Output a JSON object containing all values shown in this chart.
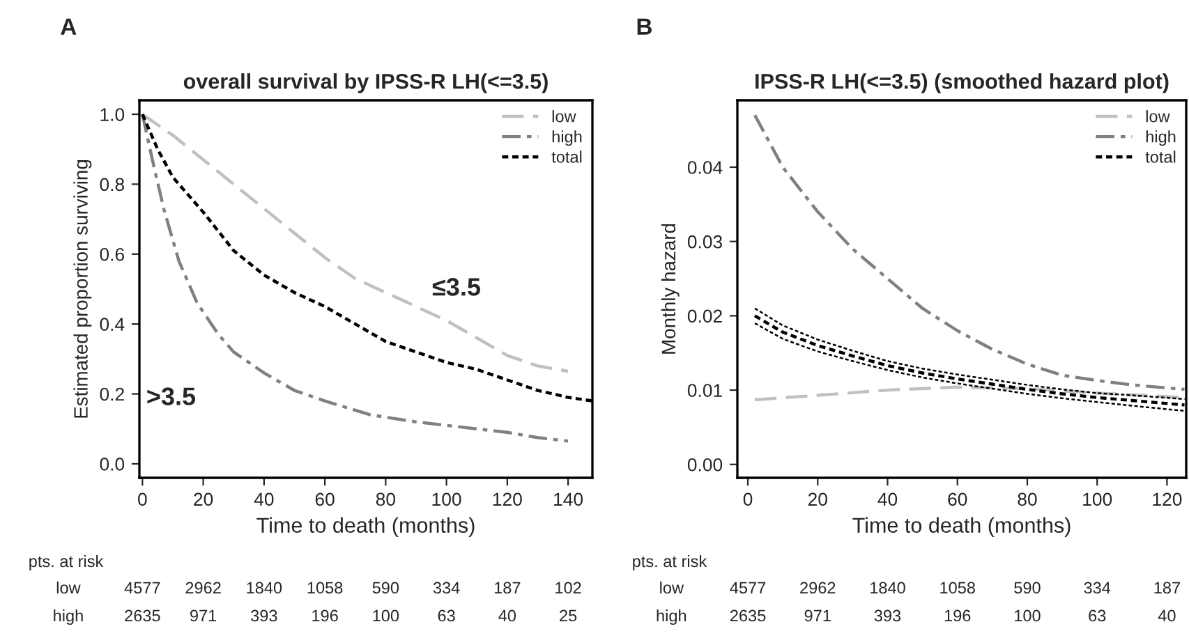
{
  "chart_data": [
    {
      "type": "line",
      "title": "overall survival by IPSS-R LH(<=3.5)",
      "xlabel": "Time to death (months)",
      "ylabel": "Estimated proportion surviving",
      "xlim": [
        -1,
        148
      ],
      "xticks": [
        0,
        20,
        40,
        60,
        80,
        100,
        120,
        140
      ],
      "ylim": [
        -0.04,
        1.04
      ],
      "yticks": [
        {
          "value": 0,
          "label": "0.0"
        },
        {
          "value": 0.2,
          "label": "0.2"
        },
        {
          "value": 0.4,
          "label": "0.4"
        },
        {
          "value": 0.6,
          "label": "0.6"
        },
        {
          "value": 0.8,
          "label": "0.8"
        },
        {
          "value": 1,
          "label": "1.0"
        }
      ],
      "grid": false,
      "legend": "top right",
      "series": [
        {
          "name": "low",
          "color": "#c0c0c0",
          "line_style": "dashed",
          "x": [
            0,
            10,
            20,
            30,
            40,
            50,
            60,
            70,
            80,
            90,
            100,
            110,
            120,
            130,
            140
          ],
          "values": [
            1.0,
            0.94,
            0.87,
            0.8,
            0.73,
            0.66,
            0.59,
            0.53,
            0.49,
            0.45,
            0.41,
            0.36,
            0.31,
            0.28,
            0.265
          ]
        },
        {
          "name": "high",
          "color": "#808080",
          "line_style": "dashdot",
          "x": [
            0,
            3,
            7,
            12,
            18,
            25,
            30,
            40,
            50,
            60,
            75,
            90,
            100,
            110,
            120,
            130,
            140
          ],
          "values": [
            1.0,
            0.88,
            0.73,
            0.58,
            0.46,
            0.37,
            0.32,
            0.26,
            0.21,
            0.18,
            0.14,
            0.12,
            0.11,
            0.1,
            0.09,
            0.075,
            0.065
          ]
        },
        {
          "name": "total",
          "color": "#000000",
          "line_style": "dotted",
          "x": [
            0,
            5,
            10,
            20,
            30,
            40,
            50,
            60,
            70,
            80,
            90,
            100,
            110,
            120,
            130,
            140,
            148
          ],
          "values": [
            1.0,
            0.9,
            0.82,
            0.72,
            0.61,
            0.54,
            0.49,
            0.45,
            0.4,
            0.35,
            0.32,
            0.29,
            0.27,
            0.24,
            0.21,
            0.19,
            0.18
          ]
        }
      ],
      "annotations": [
        "A",
        "pts. at risk",
        "low 4577 2962 1840 1058 590 334 187 102",
        "high 2635 971 393 196 100 63 40 25",
        "≤3.5",
        ">3.5"
      ]
    },
    {
      "type": "line",
      "title": "IPSS-R LH(<=3.5) (smoothed hazard plot)",
      "xlabel": "Time to death (months)",
      "ylabel": "Monthly hazard",
      "xlim": [
        -3,
        125.5
      ],
      "xticks": [
        0,
        20,
        40,
        60,
        80,
        100,
        120
      ],
      "ylim": [
        -0.0018,
        0.049
      ],
      "yticks": [
        {
          "value": 0,
          "label": "0.00"
        },
        {
          "value": 0.01,
          "label": "0.01"
        },
        {
          "value": 0.02,
          "label": "0.02"
        },
        {
          "value": 0.03,
          "label": "0.03"
        },
        {
          "value": 0.04,
          "label": "0.04"
        }
      ],
      "grid": false,
      "legend": "top right",
      "series": [
        {
          "name": "low",
          "color": "#c0c0c0",
          "line_style": "dashed",
          "x": [
            2,
            20,
            40,
            60,
            80,
            100,
            125
          ],
          "values": [
            0.0087,
            0.0093,
            0.01,
            0.0104,
            0.0102,
            0.0096,
            0.009
          ]
        },
        {
          "name": "high",
          "color": "#808080",
          "line_style": "dashdot",
          "x": [
            2,
            10,
            20,
            30,
            40,
            50,
            60,
            70,
            80,
            90,
            100,
            110,
            125
          ],
          "values": [
            0.047,
            0.04,
            0.034,
            0.029,
            0.025,
            0.021,
            0.018,
            0.0155,
            0.0135,
            0.012,
            0.0113,
            0.0107,
            0.0101
          ]
        },
        {
          "name": "total",
          "color": "#000000",
          "line_style": "dotted",
          "x": [
            2,
            10,
            20,
            30,
            40,
            50,
            60,
            70,
            80,
            90,
            100,
            110,
            125
          ],
          "values": [
            0.02,
            0.0178,
            0.016,
            0.0146,
            0.0133,
            0.0123,
            0.0115,
            0.0108,
            0.0101,
            0.0095,
            0.009,
            0.0086,
            0.008
          ]
        },
        {
          "color": "#000000",
          "line_style": "dotted",
          "x": [
            2,
            10,
            20,
            30,
            40,
            50,
            60,
            70,
            80,
            90,
            100,
            110,
            125
          ],
          "values": [
            0.019,
            0.0169,
            0.0152,
            0.0139,
            0.0127,
            0.0117,
            0.0109,
            0.0102,
            0.0095,
            0.0089,
            0.0084,
            0.0079,
            0.0072
          ]
        },
        {
          "color": "#000000",
          "line_style": "dotted",
          "x": [
            2,
            10,
            20,
            30,
            40,
            50,
            60,
            70,
            80,
            90,
            100,
            110,
            125
          ],
          "values": [
            0.021,
            0.0187,
            0.0168,
            0.0153,
            0.0139,
            0.0129,
            0.0121,
            0.0114,
            0.0107,
            0.0101,
            0.0096,
            0.0093,
            0.0088
          ]
        }
      ],
      "annotations": [
        "B",
        "pts. at risk",
        "low 4577 2962 1840 1058 590 334 187",
        "high 2635 971 393 196 100 63 40"
      ]
    }
  ]
}
